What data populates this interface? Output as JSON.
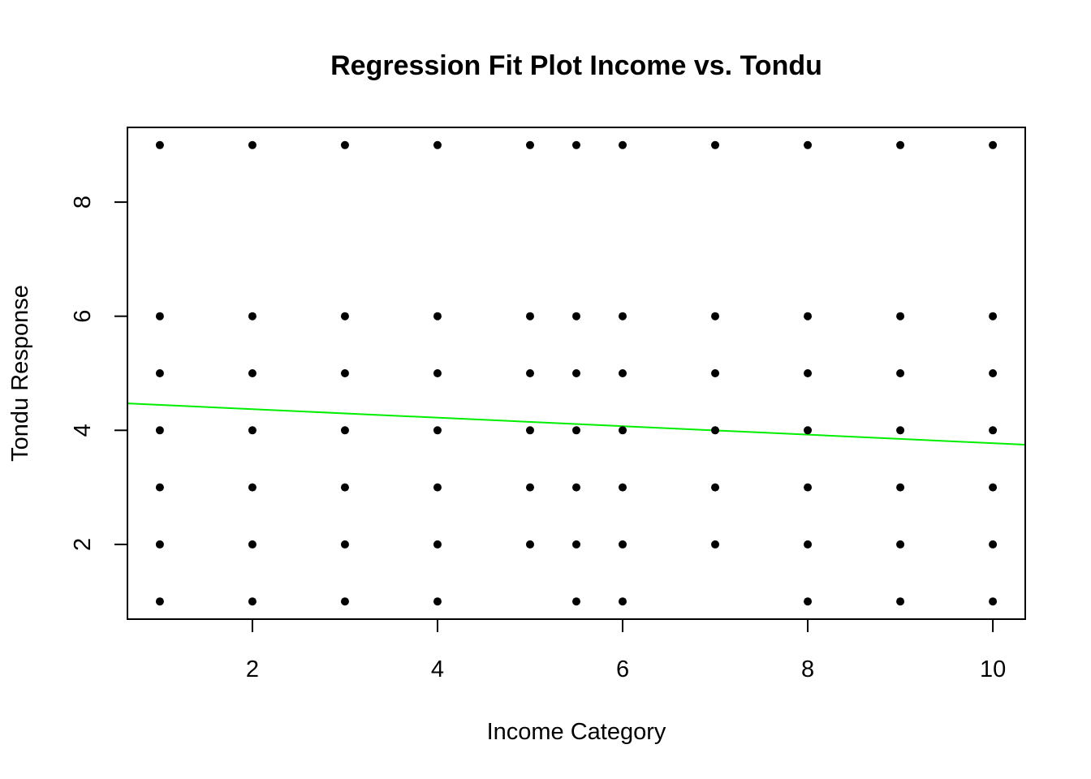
{
  "chart_data": {
    "type": "scatter",
    "title": "Regression Fit Plot Income vs. Tondu",
    "xlabel": "Income Category",
    "ylabel": "Tondu Response",
    "xlim": [
      0.65,
      10.35
    ],
    "ylim": [
      0.69,
      9.31
    ],
    "xticks": [
      2,
      4,
      6,
      8,
      10
    ],
    "yticks": [
      2,
      4,
      6,
      8
    ],
    "grid": false,
    "legend": "none",
    "point_color": "#000000",
    "fit_line": {
      "color": "#00ee00",
      "intercept": 4.52,
      "slope": -0.0745
    },
    "points": [
      [
        1,
        9
      ],
      [
        1,
        6
      ],
      [
        1,
        5
      ],
      [
        1,
        4
      ],
      [
        1,
        3
      ],
      [
        1,
        2
      ],
      [
        1,
        1
      ],
      [
        2,
        9
      ],
      [
        2,
        6
      ],
      [
        2,
        5
      ],
      [
        2,
        4
      ],
      [
        2,
        3
      ],
      [
        2,
        2
      ],
      [
        2,
        1
      ],
      [
        3,
        9
      ],
      [
        3,
        6
      ],
      [
        3,
        5
      ],
      [
        3,
        4
      ],
      [
        3,
        3
      ],
      [
        3,
        2
      ],
      [
        3,
        1
      ],
      [
        4,
        9
      ],
      [
        4,
        6
      ],
      [
        4,
        5
      ],
      [
        4,
        4
      ],
      [
        4,
        3
      ],
      [
        4,
        2
      ],
      [
        4,
        1
      ],
      [
        5,
        9
      ],
      [
        5,
        6
      ],
      [
        5,
        5
      ],
      [
        5,
        4
      ],
      [
        5,
        3
      ],
      [
        5,
        2
      ],
      [
        5.5,
        9
      ],
      [
        5.5,
        6
      ],
      [
        5.5,
        5
      ],
      [
        5.5,
        4
      ],
      [
        5.5,
        3
      ],
      [
        5.5,
        2
      ],
      [
        5.5,
        1
      ],
      [
        6,
        9
      ],
      [
        6,
        6
      ],
      [
        6,
        5
      ],
      [
        6,
        4
      ],
      [
        6,
        3
      ],
      [
        6,
        2
      ],
      [
        6,
        1
      ],
      [
        7,
        9
      ],
      [
        7,
        6
      ],
      [
        7,
        5
      ],
      [
        7,
        4
      ],
      [
        7,
        3
      ],
      [
        7,
        2
      ],
      [
        8,
        9
      ],
      [
        8,
        6
      ],
      [
        8,
        5
      ],
      [
        8,
        4
      ],
      [
        8,
        3
      ],
      [
        8,
        2
      ],
      [
        8,
        1
      ],
      [
        9,
        9
      ],
      [
        9,
        6
      ],
      [
        9,
        5
      ],
      [
        9,
        4
      ],
      [
        9,
        3
      ],
      [
        9,
        2
      ],
      [
        9,
        1
      ],
      [
        10,
        9
      ],
      [
        10,
        6
      ],
      [
        10,
        5
      ],
      [
        10,
        4
      ],
      [
        10,
        3
      ],
      [
        10,
        2
      ],
      [
        10,
        1
      ]
    ]
  }
}
